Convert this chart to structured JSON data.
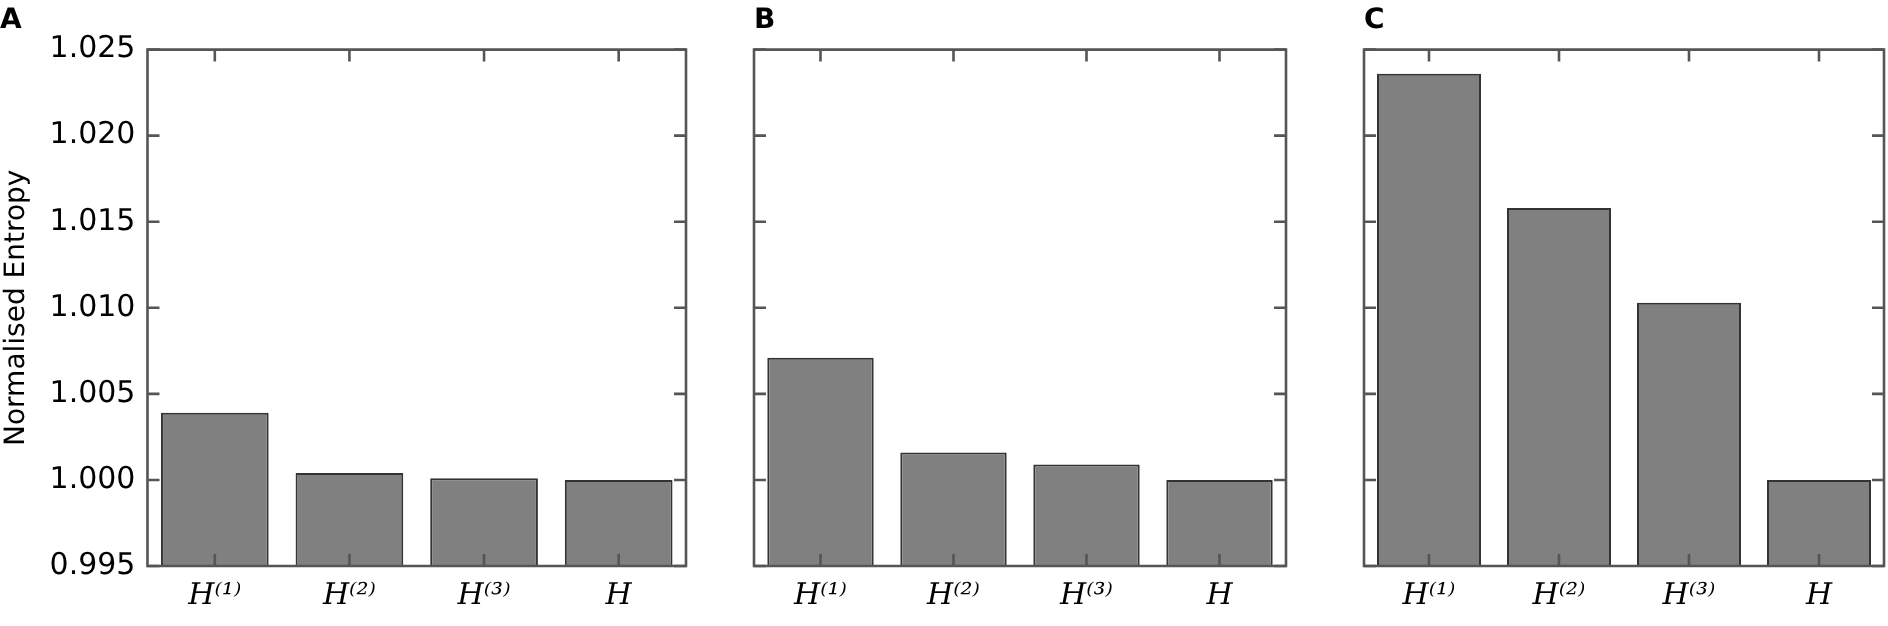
{
  "chart_data": [
    {
      "type": "bar",
      "title": "A",
      "ylabel": "Normalised Entropy",
      "categories": [
        "H⁽¹⁾",
        "H⁽²⁾",
        "H⁽³⁾",
        "H"
      ],
      "values": [
        1.0039,
        1.0004,
        1.0001,
        1.0
      ],
      "color": "#808080",
      "ylim": [
        0.995,
        1.025
      ],
      "yticks": [
        {
          "value": 0.995,
          "label": "0.995"
        },
        {
          "value": 1.0,
          "label": "1.000"
        },
        {
          "value": 1.005,
          "label": "1.005"
        },
        {
          "value": 1.01,
          "label": "1.010"
        },
        {
          "value": 1.015,
          "label": "1.015"
        },
        {
          "value": 1.02,
          "label": "1.020"
        },
        {
          "value": 1.025,
          "label": "1.025"
        }
      ]
    },
    {
      "type": "bar",
      "title": "B",
      "categories": [
        "H⁽¹⁾",
        "H⁽²⁾",
        "H⁽³⁾",
        "H"
      ],
      "values": [
        1.0071,
        1.0016,
        1.0009,
        1.0
      ],
      "color": "#808080",
      "ylim": [
        0.995,
        1.025
      ],
      "yticks": [
        0.995,
        1.0,
        1.005,
        1.01,
        1.015,
        1.02,
        1.025
      ],
      "tick_labels": "x"
    },
    {
      "type": "bar",
      "title": "C",
      "categories": [
        "H⁽¹⁾",
        "H⁽²⁾",
        "H⁽³⁾",
        "H"
      ],
      "values": [
        1.0236,
        1.0158,
        1.0103,
        1.0
      ],
      "color": "#808080",
      "ylim": [
        0.995,
        1.025
      ],
      "yticks": [
        0.995,
        1.0,
        1.005,
        1.01,
        1.015,
        1.02,
        1.025
      ],
      "tick_labels": "x"
    }
  ]
}
